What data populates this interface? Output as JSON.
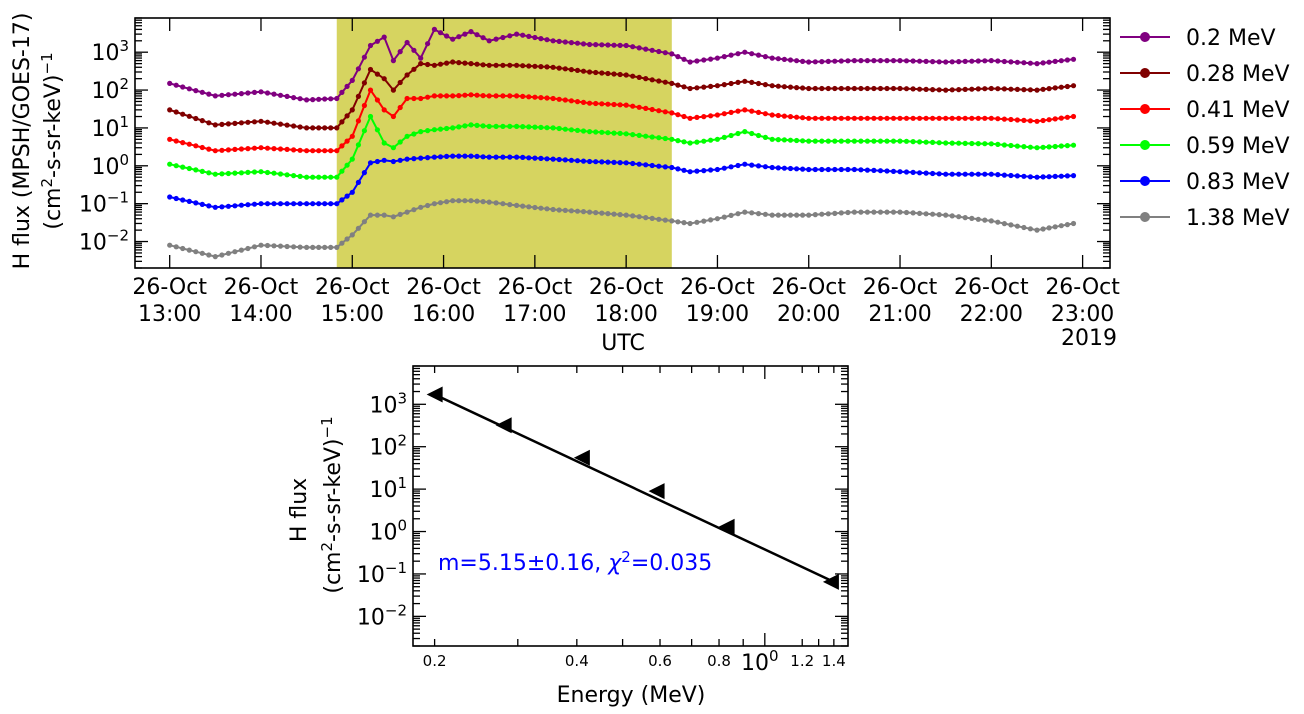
{
  "chart_data": [
    {
      "type": "line",
      "ylabel_line1": "H flux (MPSH/GOES-17)",
      "ylabel_line2_base": "(cm",
      "ylabel_line2_sup": "2",
      "ylabel_line2_mid": "-s-sr-keV)",
      "ylabel_line2_sup2": "−1",
      "xlabel": "UTC",
      "year_label": "2019",
      "xlim_hours": [
        12.62,
        23.3
      ],
      "ylim": [
        0.002,
        8000
      ],
      "y_ticks": [
        0.01,
        0.1,
        1,
        10,
        100,
        1000
      ],
      "y_tick_labels": [
        {
          "base": "10",
          "exp": "−2"
        },
        {
          "base": "10",
          "exp": "−1"
        },
        {
          "base": "10",
          "exp": "0"
        },
        {
          "base": "10",
          "exp": "1"
        },
        {
          "base": "10",
          "exp": "2"
        },
        {
          "base": "10",
          "exp": "3"
        }
      ],
      "x_ticks_hours": [
        13,
        14,
        15,
        16,
        17,
        18,
        19,
        20,
        21,
        22,
        23
      ],
      "x_tick_labels": [
        {
          "date": "26-Oct",
          "time": "13:00"
        },
        {
          "date": "26-Oct",
          "time": "14:00"
        },
        {
          "date": "26-Oct",
          "time": "15:00"
        },
        {
          "date": "26-Oct",
          "time": "16:00"
        },
        {
          "date": "26-Oct",
          "time": "17:00"
        },
        {
          "date": "26-Oct",
          "time": "18:00"
        },
        {
          "date": "26-Oct",
          "time": "19:00"
        },
        {
          "date": "26-Oct",
          "time": "20:00"
        },
        {
          "date": "26-Oct",
          "time": "21:00"
        },
        {
          "date": "26-Oct",
          "time": "22:00"
        },
        {
          "date": "26-Oct",
          "time": "23:00"
        }
      ],
      "shaded_interval_hours": [
        14.83,
        18.5
      ],
      "shade_color": "#d6d460",
      "series": [
        {
          "name": "0.2 MeV",
          "color": "#800080",
          "x": [
            13.0,
            13.5,
            14.0,
            14.5,
            14.83,
            15.0,
            15.2,
            15.35,
            15.45,
            15.6,
            15.75,
            15.9,
            16.1,
            16.3,
            16.5,
            16.8,
            17.2,
            17.6,
            18.0,
            18.5,
            18.7,
            19.0,
            19.3,
            19.6,
            20.0,
            20.5,
            21.0,
            21.5,
            22.0,
            22.5,
            22.9
          ],
          "y": [
            150,
            70,
            90,
            55,
            60,
            180,
            1500,
            2500,
            600,
            1800,
            700,
            4000,
            2200,
            3500,
            2000,
            3000,
            2000,
            1600,
            1500,
            900,
            550,
            700,
            1000,
            700,
            550,
            600,
            600,
            550,
            600,
            500,
            650
          ]
        },
        {
          "name": "0.28 MeV",
          "color": "#800000",
          "x": [
            13.0,
            13.5,
            14.0,
            14.5,
            14.83,
            15.0,
            15.2,
            15.35,
            15.45,
            15.6,
            15.75,
            15.9,
            16.1,
            16.3,
            16.5,
            16.8,
            17.2,
            17.6,
            18.0,
            18.5,
            18.7,
            19.0,
            19.3,
            19.6,
            20.0,
            20.5,
            21.0,
            21.5,
            22.0,
            22.5,
            22.9
          ],
          "y": [
            30,
            12,
            15,
            10,
            10,
            30,
            350,
            200,
            100,
            250,
            500,
            450,
            550,
            500,
            450,
            450,
            400,
            300,
            250,
            150,
            110,
            130,
            170,
            130,
            110,
            110,
            110,
            100,
            110,
            100,
            130
          ]
        },
        {
          "name": "0.41 MeV",
          "color": "#ff0000",
          "x": [
            13.0,
            13.5,
            14.0,
            14.5,
            14.83,
            15.0,
            15.2,
            15.35,
            15.45,
            15.6,
            15.75,
            15.9,
            16.1,
            16.3,
            16.5,
            16.8,
            17.2,
            17.6,
            18.0,
            18.5,
            18.7,
            19.0,
            19.3,
            19.6,
            20.0,
            20.5,
            21.0,
            21.5,
            22.0,
            22.5,
            22.9
          ],
          "y": [
            5,
            2.5,
            3,
            2.5,
            2.5,
            6,
            100,
            30,
            20,
            60,
            60,
            70,
            70,
            75,
            70,
            70,
            60,
            45,
            40,
            25,
            18,
            22,
            30,
            22,
            18,
            18,
            18,
            18,
            18,
            15,
            20
          ]
        },
        {
          "name": "0.59 MeV",
          "color": "#00ff00",
          "x": [
            13.0,
            13.5,
            14.0,
            14.5,
            14.83,
            15.0,
            15.2,
            15.35,
            15.45,
            15.6,
            15.75,
            15.9,
            16.1,
            16.3,
            16.5,
            16.8,
            17.2,
            17.6,
            18.0,
            18.5,
            18.7,
            19.0,
            19.3,
            19.6,
            20.0,
            20.5,
            21.0,
            21.5,
            22.0,
            22.5,
            22.9
          ],
          "y": [
            1.1,
            0.6,
            0.7,
            0.5,
            0.5,
            1.5,
            20,
            4,
            3,
            6,
            8,
            9,
            10,
            12,
            11,
            11,
            10,
            8,
            7,
            5,
            4,
            5,
            8,
            5,
            4.5,
            4.5,
            4.5,
            4.0,
            3.8,
            3.0,
            3.5
          ]
        },
        {
          "name": "0.83 MeV",
          "color": "#0000ff",
          "x": [
            13.0,
            13.5,
            14.0,
            14.5,
            14.83,
            15.0,
            15.2,
            15.35,
            15.45,
            15.6,
            15.75,
            15.9,
            16.1,
            16.3,
            16.5,
            16.8,
            17.2,
            17.6,
            18.0,
            18.5,
            18.7,
            19.0,
            19.3,
            19.6,
            20.0,
            20.5,
            21.0,
            21.5,
            22.0,
            22.5,
            22.9
          ],
          "y": [
            0.15,
            0.08,
            0.1,
            0.1,
            0.1,
            0.2,
            1.2,
            1.4,
            1.3,
            1.5,
            1.6,
            1.7,
            1.8,
            1.8,
            1.7,
            1.7,
            1.5,
            1.3,
            1.2,
            0.9,
            0.7,
            0.8,
            1.1,
            0.9,
            0.8,
            0.8,
            0.7,
            0.6,
            0.6,
            0.5,
            0.55
          ]
        },
        {
          "name": "1.38 MeV",
          "color": "#808080",
          "x": [
            13.0,
            13.5,
            14.0,
            14.5,
            14.83,
            15.0,
            15.2,
            15.35,
            15.45,
            15.6,
            15.75,
            15.9,
            16.1,
            16.3,
            16.5,
            16.8,
            17.2,
            17.6,
            18.0,
            18.5,
            18.7,
            19.0,
            19.3,
            19.6,
            20.0,
            20.5,
            21.0,
            21.5,
            22.0,
            22.5,
            22.9
          ],
          "y": [
            0.008,
            0.004,
            0.008,
            0.007,
            0.007,
            0.015,
            0.05,
            0.05,
            0.045,
            0.06,
            0.08,
            0.1,
            0.12,
            0.12,
            0.11,
            0.09,
            0.07,
            0.06,
            0.05,
            0.035,
            0.03,
            0.04,
            0.06,
            0.05,
            0.05,
            0.06,
            0.06,
            0.05,
            0.035,
            0.02,
            0.03
          ]
        }
      ]
    },
    {
      "type": "scatter",
      "ylabel_line1": "H flux",
      "ylabel_line2_base": "(cm",
      "ylabel_line2_sup": "2",
      "ylabel_line2_mid": "-s-sr-keV)",
      "ylabel_line2_sup2": "−1",
      "xlabel": "Energy (MeV)",
      "xlim": [
        0.18,
        1.5
      ],
      "ylim": [
        0.002,
        8000
      ],
      "y_ticks": [
        0.01,
        0.1,
        1,
        10,
        100,
        1000
      ],
      "y_tick_labels": [
        {
          "base": "10",
          "exp": "−2"
        },
        {
          "base": "10",
          "exp": "−1"
        },
        {
          "base": "10",
          "exp": "0"
        },
        {
          "base": "10",
          "exp": "1"
        },
        {
          "base": "10",
          "exp": "2"
        },
        {
          "base": "10",
          "exp": "3"
        }
      ],
      "x_minor_ticks": [
        0.2,
        0.4,
        0.6,
        0.8,
        1.2,
        1.4
      ],
      "x_minor_labels": [
        "0.2",
        "0.4",
        "0.6",
        "0.8",
        "1.2",
        "1.4"
      ],
      "x_major_tick": 1,
      "x_major_label": {
        "base": "10",
        "exp": "0"
      },
      "points": {
        "x": [
          0.2,
          0.28,
          0.41,
          0.59,
          0.83,
          1.38
        ],
        "y": [
          1700,
          320,
          55,
          9,
          1.3,
          0.065
        ]
      },
      "fit_line": {
        "x": [
          0.2,
          1.38
        ],
        "y": [
          1700,
          0.07
        ]
      },
      "annotation": {
        "text_pre": "m=5.15±0.16, ",
        "chi": "χ",
        "chi_sup": "2",
        "text_post": "=0.035",
        "color": "#0000ff"
      }
    }
  ]
}
